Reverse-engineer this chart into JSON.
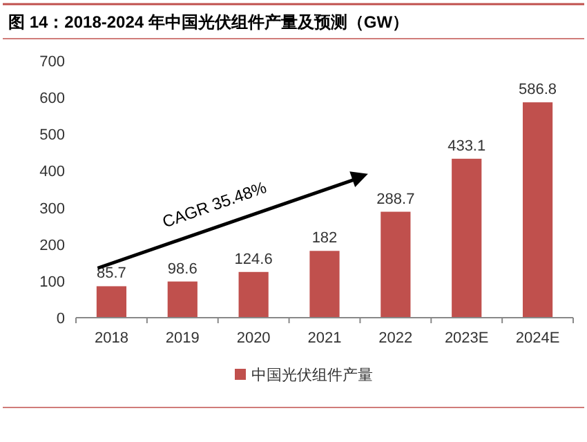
{
  "chart_data": {
    "type": "bar",
    "title": "图 14：2018-2024 年中国光伏组件产量及预测（GW）",
    "categories": [
      "2018",
      "2019",
      "2020",
      "2021",
      "2022",
      "2023E",
      "2024E"
    ],
    "series": [
      {
        "name": "中国光伏组件产量",
        "color": "#c0504d",
        "values": [
          85.7,
          98.6,
          124.6,
          182,
          288.7,
          433.1,
          586.8
        ]
      }
    ],
    "ylim": [
      0,
      700
    ],
    "yticks": [
      0,
      100,
      200,
      300,
      400,
      500,
      600,
      700
    ],
    "data_labels": true,
    "legend": "bottom",
    "grid": false,
    "annotations": [
      "CAGR  35.48%"
    ]
  }
}
